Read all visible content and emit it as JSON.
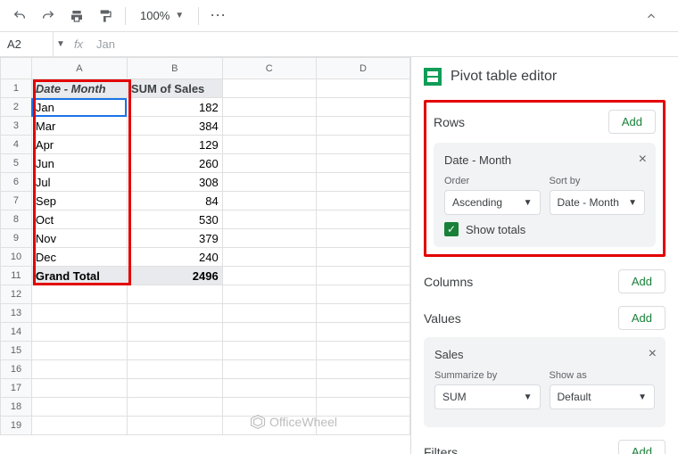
{
  "toolbar": {
    "zoom": "100%"
  },
  "namebox": {
    "ref": "A2",
    "formula": "Jan"
  },
  "grid": {
    "cols": [
      "A",
      "B",
      "C",
      "D"
    ],
    "header_a": "Date - Month",
    "header_b": "SUM of Sales",
    "rows": [
      {
        "m": "Jan",
        "v": "182"
      },
      {
        "m": "Mar",
        "v": "384"
      },
      {
        "m": "Apr",
        "v": "129"
      },
      {
        "m": "Jun",
        "v": "260"
      },
      {
        "m": "Jul",
        "v": "308"
      },
      {
        "m": "Sep",
        "v": "84"
      },
      {
        "m": "Oct",
        "v": "530"
      },
      {
        "m": "Nov",
        "v": "379"
      },
      {
        "m": "Dec",
        "v": "240"
      }
    ],
    "gt_label": "Grand Total",
    "gt_val": "2496",
    "empty_rows": 8
  },
  "editor": {
    "title": "Pivot table editor",
    "rows_label": "Rows",
    "cols_label": "Columns",
    "values_label": "Values",
    "filters_label": "Filters",
    "add": "Add",
    "row_card": {
      "title": "Date - Month",
      "order_label": "Order",
      "order_val": "Ascending",
      "sort_label": "Sort by",
      "sort_val": "Date - Month",
      "show_totals": "Show totals"
    },
    "val_card": {
      "title": "Sales",
      "sum_label": "Summarize by",
      "sum_val": "SUM",
      "show_label": "Show as",
      "show_val": "Default"
    }
  },
  "watermark": "OfficeWheel",
  "colors": {
    "accent": "#1a73e8",
    "green": "#188038",
    "red": "#e30000"
  }
}
